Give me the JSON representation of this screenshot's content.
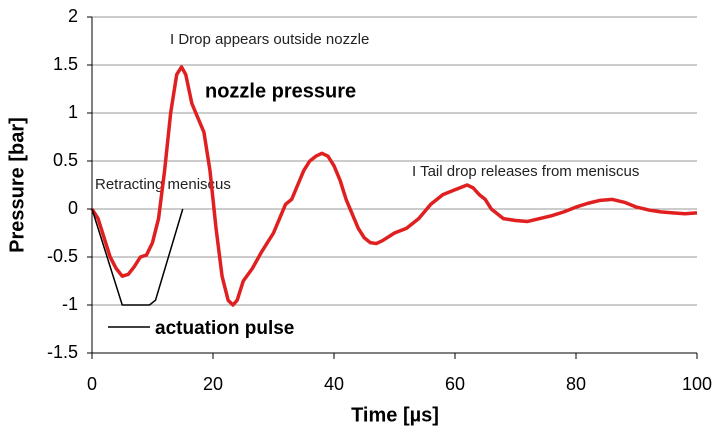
{
  "chart_data": {
    "type": "line",
    "x_label": "Time [µs]",
    "y_label": "Pressure [bar]",
    "xlim": [
      0,
      100
    ],
    "xticks": [
      0,
      20,
      40,
      60,
      80,
      100
    ],
    "ylim": [
      -1.5,
      2
    ],
    "yticks": [
      -1.5,
      -1,
      -0.5,
      0,
      0.5,
      1,
      1.5,
      2
    ],
    "grid": true,
    "series": [
      {
        "name": "nozzle pressure",
        "color": "#e02020",
        "x": [
          0,
          1,
          2,
          3,
          4,
          5,
          6,
          7,
          8,
          9,
          10,
          11,
          12,
          13,
          14,
          14.8,
          15.5,
          16.5,
          17.5,
          18.5,
          19.5,
          20.5,
          21.5,
          22.5,
          23.3,
          24,
          25,
          26.5,
          28,
          29,
          30,
          31,
          32,
          33,
          34,
          35,
          36,
          37,
          38,
          39,
          40,
          41,
          42,
          43,
          44,
          45,
          46,
          47,
          48,
          50,
          52,
          54,
          56,
          58,
          60,
          62,
          63,
          64,
          65,
          66,
          68,
          70,
          72,
          74,
          76,
          78,
          80,
          82,
          84,
          86,
          88,
          90,
          92,
          94,
          96,
          98,
          100
        ],
        "values": [
          0,
          -0.1,
          -0.3,
          -0.5,
          -0.62,
          -0.7,
          -0.68,
          -0.6,
          -0.5,
          -0.48,
          -0.35,
          -0.1,
          0.4,
          1.0,
          1.4,
          1.48,
          1.4,
          1.1,
          0.95,
          0.8,
          0.4,
          -0.2,
          -0.7,
          -0.95,
          -1.0,
          -0.95,
          -0.75,
          -0.62,
          -0.45,
          -0.35,
          -0.25,
          -0.1,
          0.05,
          0.1,
          0.25,
          0.4,
          0.5,
          0.55,
          0.58,
          0.55,
          0.45,
          0.3,
          0.1,
          -0.05,
          -0.2,
          -0.3,
          -0.35,
          -0.36,
          -0.33,
          -0.25,
          -0.2,
          -0.1,
          0.05,
          0.15,
          0.2,
          0.25,
          0.22,
          0.15,
          0.1,
          0,
          -0.1,
          -0.12,
          -0.13,
          -0.1,
          -0.07,
          -0.03,
          0.02,
          0.06,
          0.09,
          0.1,
          0.07,
          0.02,
          -0.01,
          -0.03,
          -0.04,
          -0.05,
          -0.04
        ]
      },
      {
        "name": "actuation pulse",
        "color": "#000000",
        "x": [
          0,
          5,
          9.5,
          10.5,
          15
        ],
        "values": [
          0,
          -1,
          -1,
          -0.95,
          0
        ]
      }
    ],
    "annotations": [
      "I Drop appears outside nozzle",
      "Retracting meniscus",
      "I Tail drop releases from meniscus"
    ]
  }
}
